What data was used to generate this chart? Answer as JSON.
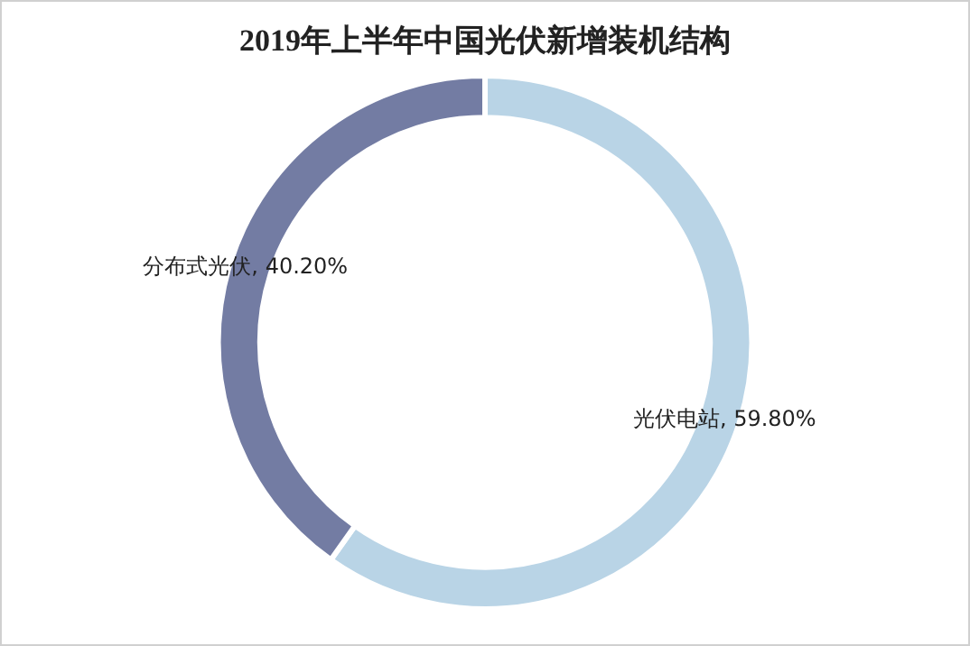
{
  "chart_data": {
    "type": "donut",
    "title": "2019年上半年中国光伏新增装机结构",
    "categories": [
      "光伏电站",
      "分布式光伏"
    ],
    "values": [
      59.8,
      40.2
    ],
    "colors": [
      "#b9d4e6",
      "#737ca3"
    ],
    "value_labels": [
      "59.80%",
      "40.20%"
    ],
    "legend": false
  }
}
